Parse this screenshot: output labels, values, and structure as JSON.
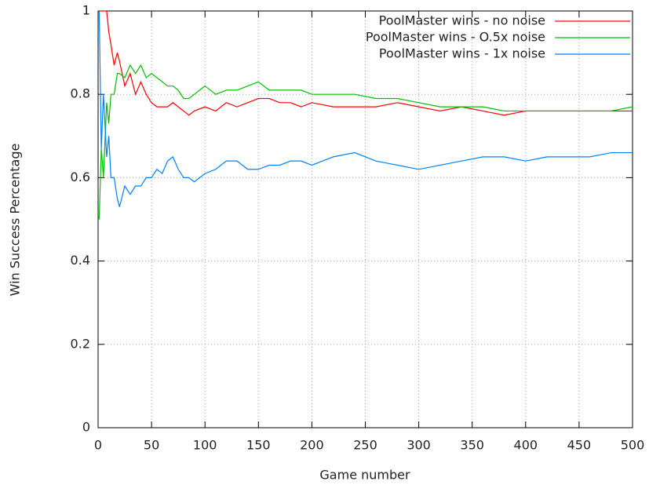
{
  "chart_data": {
    "type": "line",
    "xlabel": "Game number",
    "ylabel": "Win Success Percentage",
    "x": [
      1,
      3,
      5,
      8,
      10,
      12,
      15,
      18,
      20,
      25,
      30,
      35,
      40,
      45,
      50,
      55,
      60,
      65,
      70,
      75,
      80,
      85,
      90,
      100,
      110,
      120,
      130,
      140,
      150,
      160,
      170,
      180,
      190,
      200,
      220,
      240,
      260,
      280,
      300,
      320,
      340,
      360,
      380,
      400,
      420,
      440,
      460,
      480,
      500
    ],
    "series": [
      {
        "name": "PoolMaster wins - no noise",
        "color": "#ff0000",
        "values": [
          1,
          1,
          1,
          1,
          0.95,
          0.92,
          0.87,
          0.9,
          0.88,
          0.82,
          0.85,
          0.8,
          0.83,
          0.8,
          0.78,
          0.77,
          0.77,
          0.77,
          0.78,
          0.77,
          0.76,
          0.75,
          0.76,
          0.77,
          0.76,
          0.78,
          0.77,
          0.78,
          0.79,
          0.79,
          0.78,
          0.78,
          0.77,
          0.78,
          0.77,
          0.77,
          0.77,
          0.78,
          0.77,
          0.76,
          0.77,
          0.76,
          0.75,
          0.76,
          0.76,
          0.76,
          0.76,
          0.76,
          0.76
        ]
      },
      {
        "name": "PoolMaster wins - O.5x noise",
        "color": "#00c000",
        "values": [
          0.5,
          0.67,
          0.6,
          0.78,
          0.73,
          0.8,
          0.8,
          0.85,
          0.85,
          0.84,
          0.87,
          0.85,
          0.87,
          0.84,
          0.85,
          0.84,
          0.83,
          0.82,
          0.82,
          0.81,
          0.79,
          0.79,
          0.8,
          0.82,
          0.8,
          0.81,
          0.81,
          0.82,
          0.83,
          0.81,
          0.81,
          0.81,
          0.81,
          0.8,
          0.8,
          0.8,
          0.79,
          0.79,
          0.78,
          0.77,
          0.77,
          0.77,
          0.76,
          0.76,
          0.76,
          0.76,
          0.76,
          0.76,
          0.77
        ]
      },
      {
        "name": "PoolMaster wins - 1x noise",
        "color": "#0080ff",
        "values": [
          1,
          0.67,
          0.8,
          0.65,
          0.7,
          0.6,
          0.6,
          0.55,
          0.53,
          0.58,
          0.56,
          0.58,
          0.58,
          0.6,
          0.6,
          0.62,
          0.61,
          0.64,
          0.65,
          0.62,
          0.6,
          0.6,
          0.59,
          0.61,
          0.62,
          0.64,
          0.64,
          0.62,
          0.62,
          0.63,
          0.63,
          0.64,
          0.64,
          0.63,
          0.65,
          0.66,
          0.64,
          0.63,
          0.62,
          0.63,
          0.64,
          0.65,
          0.65,
          0.64,
          0.65,
          0.65,
          0.65,
          0.66,
          0.66
        ]
      }
    ],
    "xlim": [
      0,
      500
    ],
    "xticks": [
      0,
      50,
      100,
      150,
      200,
      250,
      300,
      350,
      400,
      450,
      500
    ],
    "ylim": [
      0,
      1
    ],
    "yticks": [
      0,
      0.2,
      0.4,
      0.6,
      0.8,
      1
    ],
    "grid": true,
    "legend": "top-right"
  }
}
